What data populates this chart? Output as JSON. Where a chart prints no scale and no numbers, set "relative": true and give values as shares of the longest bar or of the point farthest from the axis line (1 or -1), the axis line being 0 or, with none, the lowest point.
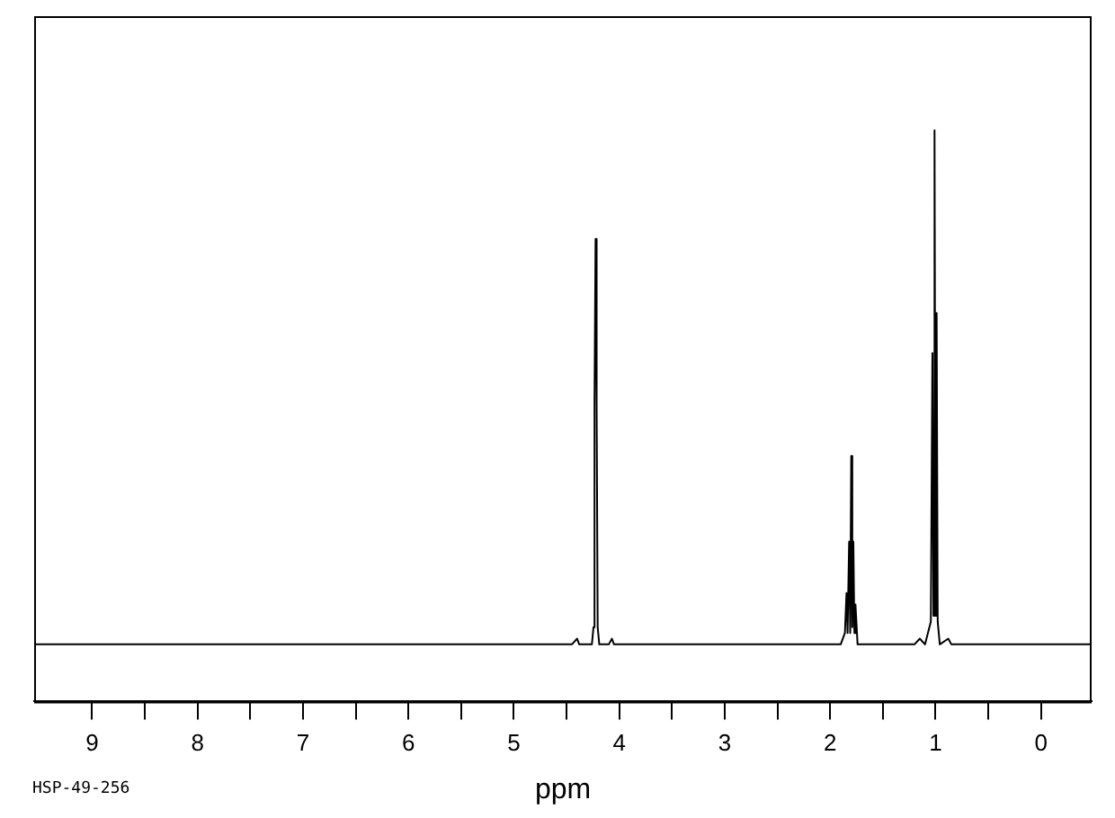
{
  "chart_data": {
    "type": "line",
    "xlabel": "ppm",
    "relative": true,
    "annotations": [
      "HSP-49-256"
    ],
    "xlim": [
      9.55,
      -0.48
    ],
    "xticks": [
      9,
      {
        "value": 8.5,
        "label": null
      },
      8,
      {
        "value": 7.5,
        "label": null
      },
      7,
      {
        "value": 6.5,
        "label": null
      },
      6,
      {
        "value": 5.5,
        "label": null
      },
      5,
      {
        "value": 4.5,
        "label": null
      },
      4,
      {
        "value": 3.5,
        "label": null
      },
      3,
      {
        "value": 2.5,
        "label": null
      },
      2,
      {
        "value": 1.5,
        "label": null
      },
      1,
      {
        "value": 0.5,
        "label": null
      },
      0
    ],
    "grid": false,
    "legend": false,
    "marker": "none",
    "line_style": "solid",
    "series": [
      {
        "color": "#000000",
        "x": [
          9.55,
          4.45,
          4.4,
          4.38,
          4.26,
          4.245,
          4.235,
          4.225,
          4.215,
          4.205,
          4.19,
          4.1,
          4.07,
          4.05,
          1.9,
          1.86,
          1.845,
          1.835,
          1.82,
          1.81,
          1.8,
          1.79,
          1.78,
          1.77,
          1.76,
          1.74,
          1.2,
          1.15,
          1.1,
          1.045,
          1.03,
          1.02,
          1.01,
          1.0,
          0.99,
          0.98,
          0.96,
          0.88,
          0.85,
          -0.48
        ],
        "values": [
          0.1,
          0.1,
          0.11,
          0.1,
          0.1,
          0.13,
          0.53,
          0.81,
          0.52,
          0.13,
          0.1,
          0.1,
          0.11,
          0.1,
          0.1,
          0.12,
          0.19,
          0.12,
          0.28,
          0.12,
          0.43,
          0.13,
          0.28,
          0.12,
          0.17,
          0.1,
          0.1,
          0.11,
          0.1,
          0.14,
          0.61,
          0.15,
          1,
          0.15,
          0.68,
          0.14,
          0.1,
          0.11,
          0.1,
          0.1
        ]
      }
    ]
  }
}
